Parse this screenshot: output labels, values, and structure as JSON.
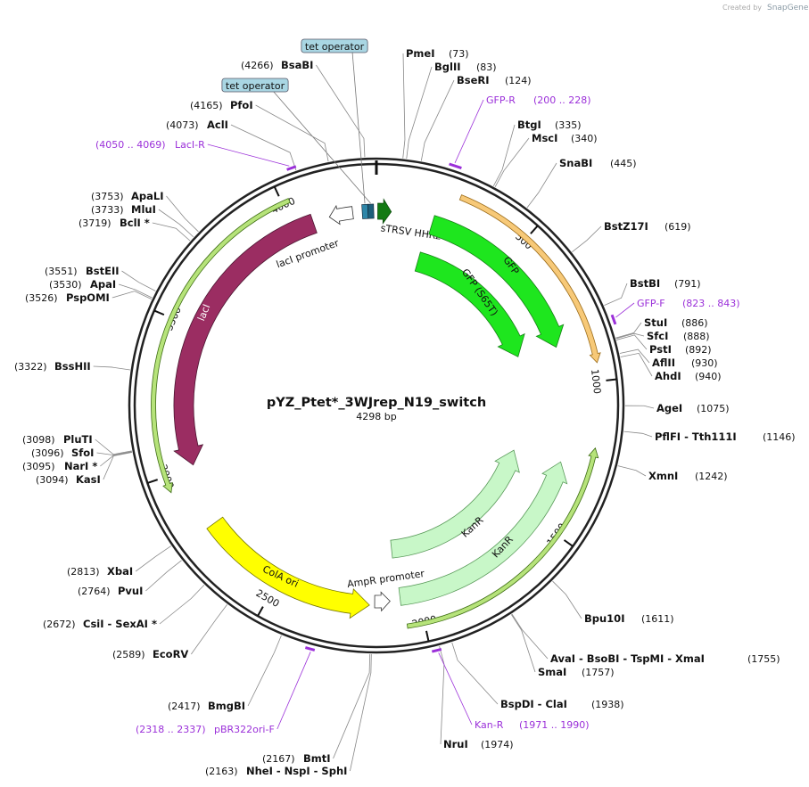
{
  "watermark": {
    "prefix": "Created by",
    "brand": "SnapGene"
  },
  "map": {
    "title": "pYZ_Ptet*_3WJrep_N19_switch",
    "length": {
      "value": 4298,
      "label": "4298 bp"
    },
    "ticks": [
      500,
      1000,
      1500,
      2000,
      2500,
      3000,
      3500,
      4000
    ]
  },
  "sites": [
    {
      "names": "PmeI",
      "pos": {
        "value": 73,
        "label": "(73)"
      }
    },
    {
      "names": "BglII",
      "pos": {
        "value": 83,
        "label": "(83)"
      }
    },
    {
      "names": "BseRI",
      "pos": {
        "value": 124,
        "label": "(124)"
      }
    },
    {
      "names": "BtgI",
      "pos": {
        "value": 335,
        "label": "(335)"
      }
    },
    {
      "names": "MscI",
      "pos": {
        "value": 340,
        "label": "(340)"
      }
    },
    {
      "names": "SnaBI",
      "pos": {
        "value": 445,
        "label": "(445)"
      }
    },
    {
      "names": "BstZ17I",
      "pos": {
        "value": 619,
        "label": "(619)"
      }
    },
    {
      "names": "BstBI",
      "pos": {
        "value": 791,
        "label": "(791)"
      }
    },
    {
      "names": "StuI",
      "pos": {
        "value": 886,
        "label": "(886)"
      }
    },
    {
      "names": "SfcI",
      "pos": {
        "value": 888,
        "label": "(888)"
      }
    },
    {
      "names": "PstI",
      "pos": {
        "value": 892,
        "label": "(892)"
      }
    },
    {
      "names": "AflII",
      "pos": {
        "value": 930,
        "label": "(930)"
      }
    },
    {
      "names": "AhdI",
      "pos": {
        "value": 940,
        "label": "(940)"
      }
    },
    {
      "names": "AgeI",
      "pos": {
        "value": 1075,
        "label": "(1075)"
      }
    },
    {
      "names": "PflFI - Tth111I",
      "pos": {
        "value": 1146,
        "label": "(1146)"
      }
    },
    {
      "names": "XmnI",
      "pos": {
        "value": 1242,
        "label": "(1242)"
      }
    },
    {
      "names": "Bpu10I",
      "pos": {
        "value": 1611,
        "label": "(1611)"
      }
    },
    {
      "names": "AvaI - BsoBI - TspMI - XmaI",
      "pos": {
        "value": 1755,
        "label": "(1755)"
      }
    },
    {
      "names": "SmaI",
      "pos": {
        "value": 1757,
        "label": "(1757)"
      }
    },
    {
      "names": "BspDI - ClaI",
      "pos": {
        "value": 1938,
        "label": "(1938)"
      }
    },
    {
      "names": "NruI",
      "pos": {
        "value": 1974,
        "label": "(1974)"
      }
    },
    {
      "names": "BsaBI",
      "pos": {
        "value": 4266,
        "label": "(4266)"
      }
    },
    {
      "names": "PfoI",
      "pos": {
        "value": 4165,
        "label": "(4165)"
      }
    },
    {
      "names": "AclI",
      "pos": {
        "value": 4073,
        "label": "(4073)"
      }
    },
    {
      "names": "ApaLI",
      "pos": {
        "value": 3753,
        "label": "(3753)"
      }
    },
    {
      "names": "MluI",
      "pos": {
        "value": 3733,
        "label": "(3733)"
      }
    },
    {
      "names": "BclI *",
      "pos": {
        "value": 3719,
        "label": "(3719)"
      }
    },
    {
      "names": "BstEII",
      "pos": {
        "value": 3551,
        "label": "(3551)"
      }
    },
    {
      "names": "ApaI",
      "pos": {
        "value": 3530,
        "label": "(3530)"
      }
    },
    {
      "names": "PspOMI",
      "pos": {
        "value": 3526,
        "label": "(3526)"
      }
    },
    {
      "names": "BssHII",
      "pos": {
        "value": 3322,
        "label": "(3322)"
      }
    },
    {
      "names": "PluTI",
      "pos": {
        "value": 3098,
        "label": "(3098)"
      }
    },
    {
      "names": "SfoI",
      "pos": {
        "value": 3096,
        "label": "(3096)"
      }
    },
    {
      "names": "NarI *",
      "pos": {
        "value": 3095,
        "label": "(3095)"
      }
    },
    {
      "names": "KasI",
      "pos": {
        "value": 3094,
        "label": "(3094)"
      }
    },
    {
      "names": "XbaI",
      "pos": {
        "value": 2813,
        "label": "(2813)"
      }
    },
    {
      "names": "PvuI",
      "pos": {
        "value": 2764,
        "label": "(2764)"
      }
    },
    {
      "names": "CsiI - SexAI *",
      "pos": {
        "value": 2672,
        "label": "(2672)"
      }
    },
    {
      "names": "EcoRV",
      "pos": {
        "value": 2589,
        "label": "(2589)"
      }
    },
    {
      "names": "BmgBI",
      "pos": {
        "value": 2417,
        "label": "(2417)"
      }
    },
    {
      "names": "BmtI",
      "pos": {
        "value": 2167,
        "label": "(2167)"
      }
    },
    {
      "names": "NheI - NspI - SphI",
      "pos": {
        "value": 2163,
        "label": "(2163)"
      }
    }
  ],
  "primers": [
    {
      "name": "GFP-R",
      "range": "(200 .. 228)",
      "start": 200,
      "end": 228
    },
    {
      "name": "GFP-F",
      "range": "(823 .. 843)",
      "start": 823,
      "end": 843
    },
    {
      "name": "LacI-R",
      "range": "(4050 .. 4069)",
      "start": 4050,
      "end": 4069
    },
    {
      "name": "Kan-R",
      "range": "(1971 .. 1990)",
      "start": 1971,
      "end": 1990
    },
    {
      "name": "pBR322ori-F",
      "range": "(2318 .. 2337)",
      "start": 2318,
      "end": 2337
    }
  ],
  "features": [
    "tet operator",
    "tet operator",
    "sTRSV HHRz",
    "GFP",
    "GFP (S65T)",
    "lacI promoter",
    "lacI",
    "KanR",
    "KanR",
    "ColA ori",
    "AmpR promoter"
  ]
}
